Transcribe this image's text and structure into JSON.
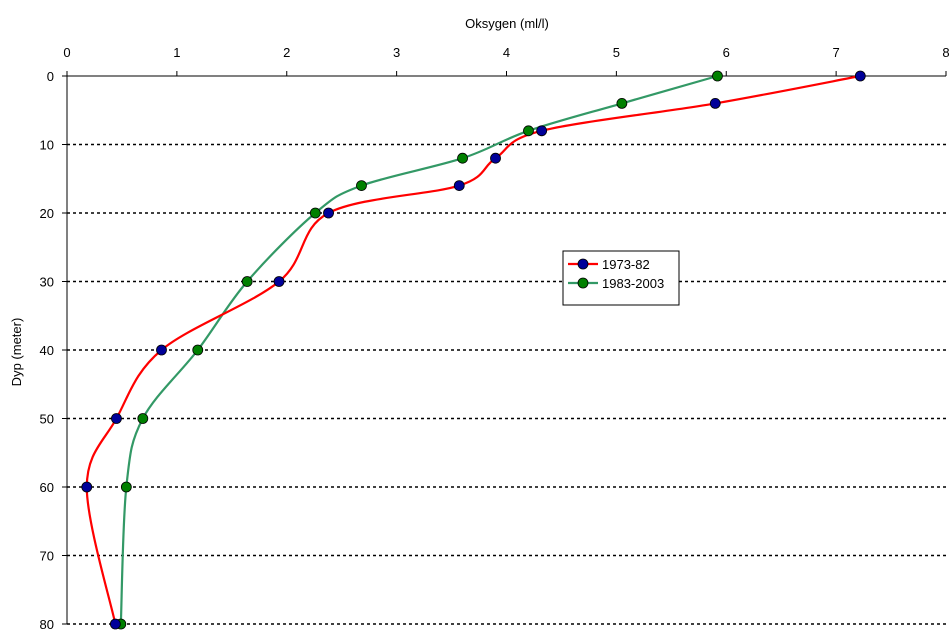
{
  "chart_data": {
    "type": "line",
    "orientation": "profile",
    "xlabel": "Oksygen (ml/l)",
    "ylabel": "Dyp (meter)",
    "x_axis_position": "top",
    "y_axis_inverted": true,
    "xlim": [
      0,
      8
    ],
    "ylim": [
      0,
      80
    ],
    "x_ticks": [
      "0",
      "1",
      "2",
      "3",
      "4",
      "5",
      "6",
      "7",
      "8"
    ],
    "y_ticks": [
      "0",
      "10",
      "20",
      "30",
      "40",
      "50",
      "60",
      "70",
      "80"
    ],
    "grid": "horizontal dotted",
    "legend_position": "center-right",
    "series": [
      {
        "name": "1973-82",
        "line_color": "#ff0000",
        "marker_color": "#000099",
        "points": [
          {
            "x": 7.22,
            "y": 0
          },
          {
            "x": 5.9,
            "y": 4
          },
          {
            "x": 4.32,
            "y": 8
          },
          {
            "x": 3.9,
            "y": 12
          },
          {
            "x": 3.57,
            "y": 16
          },
          {
            "x": 2.38,
            "y": 20
          },
          {
            "x": 1.93,
            "y": 30
          },
          {
            "x": 0.86,
            "y": 40
          },
          {
            "x": 0.45,
            "y": 50
          },
          {
            "x": 0.18,
            "y": 60
          },
          {
            "x": 0.44,
            "y": 80
          }
        ]
      },
      {
        "name": "1983-2003",
        "line_color": "#339966",
        "marker_color": "#008000",
        "points": [
          {
            "x": 5.92,
            "y": 0
          },
          {
            "x": 5.05,
            "y": 4
          },
          {
            "x": 4.2,
            "y": 8
          },
          {
            "x": 3.6,
            "y": 12
          },
          {
            "x": 2.68,
            "y": 16
          },
          {
            "x": 2.26,
            "y": 20
          },
          {
            "x": 1.64,
            "y": 30
          },
          {
            "x": 1.19,
            "y": 40
          },
          {
            "x": 0.69,
            "y": 50
          },
          {
            "x": 0.54,
            "y": 60
          },
          {
            "x": 0.49,
            "y": 80
          }
        ]
      }
    ]
  }
}
